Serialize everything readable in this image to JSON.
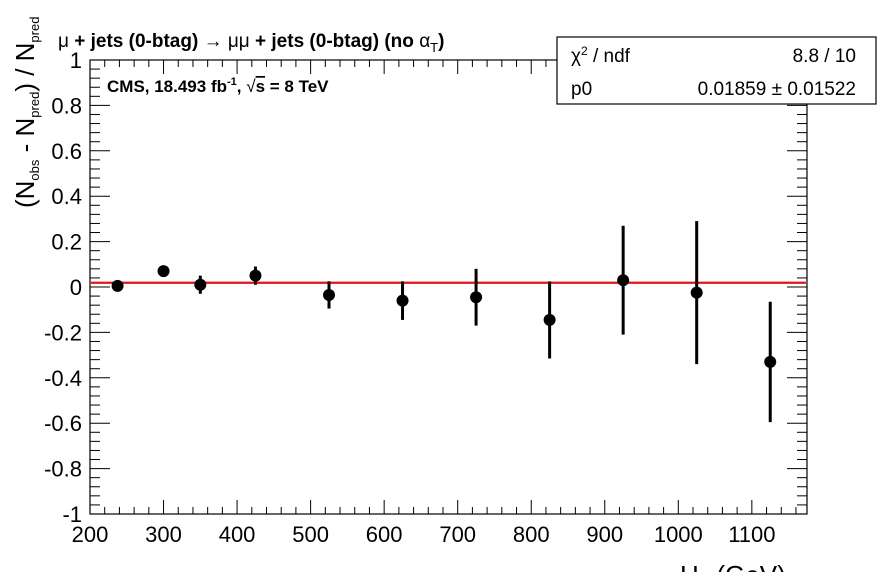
{
  "chart_data": {
    "type": "scatter",
    "title_parts": {
      "mu": "μ",
      "a": " + jets (0-btag) ",
      "arrow": "→",
      "mumu": " μμ",
      "b": " + jets (0-btag) (no ",
      "alpha": "α",
      "t_sub": "T",
      "close": ")"
    },
    "cms_label": {
      "a": "CMS, 18.493 fb",
      "sup": "-1",
      "b": ",  ",
      "root": "√",
      "s": "s",
      "c": " = 8 TeV"
    },
    "xlabel": {
      "main": "H",
      "sub": "T",
      "unit": " (GeV)"
    },
    "ylabel": {
      "p1": "(N",
      "s1": "obs",
      "p2": " - N",
      "s2": "pred",
      "p3": ") / N",
      "s3": "pred"
    },
    "xlim": [
      200,
      1175
    ],
    "ylim": [
      -1,
      1
    ],
    "xticks": [
      200,
      300,
      400,
      500,
      600,
      700,
      800,
      900,
      1000,
      1100
    ],
    "xtick_labels": [
      "200",
      "300",
      "400",
      "500",
      "600",
      "700",
      "800",
      "900",
      "1000",
      "1100"
    ],
    "yticks": [
      -1,
      -0.8,
      -0.6,
      -0.4,
      -0.2,
      0,
      0.2,
      0.4,
      0.6,
      0.8,
      1
    ],
    "ytick_labels": [
      "-1",
      "-0.8",
      "-0.6",
      "-0.4",
      "-0.2",
      "0",
      "0.2",
      "0.4",
      "0.6",
      "0.8",
      "1"
    ],
    "points": [
      {
        "x": 237.5,
        "y": 0.005,
        "err": 0.015
      },
      {
        "x": 300,
        "y": 0.07,
        "err": 0.02
      },
      {
        "x": 350,
        "y": 0.01,
        "err": 0.04
      },
      {
        "x": 425,
        "y": 0.05,
        "err": 0.04
      },
      {
        "x": 525,
        "y": -0.035,
        "err": 0.06
      },
      {
        "x": 625,
        "y": -0.06,
        "err": 0.085
      },
      {
        "x": 725,
        "y": -0.045,
        "err": 0.125
      },
      {
        "x": 825,
        "y": -0.145,
        "err": 0.17
      },
      {
        "x": 925,
        "y": 0.03,
        "err": 0.24
      },
      {
        "x": 1025,
        "y": -0.025,
        "err": 0.315
      },
      {
        "x": 1125,
        "y": -0.33,
        "err": 0.265
      }
    ],
    "fit_line": {
      "y": 0.01859,
      "color": "#e3141a"
    },
    "marker_color": "#000000",
    "grid": false
  },
  "stats_box": {
    "row1_label_chi": "χ",
    "row1_label_sup": "2",
    "row1_label_rest": " / ndf",
    "row1_value": "8.8 / 10",
    "row2_label": "p0",
    "row2_value": "0.01859",
    "row2_pm": "±",
    "row2_error": "0.01522"
  }
}
